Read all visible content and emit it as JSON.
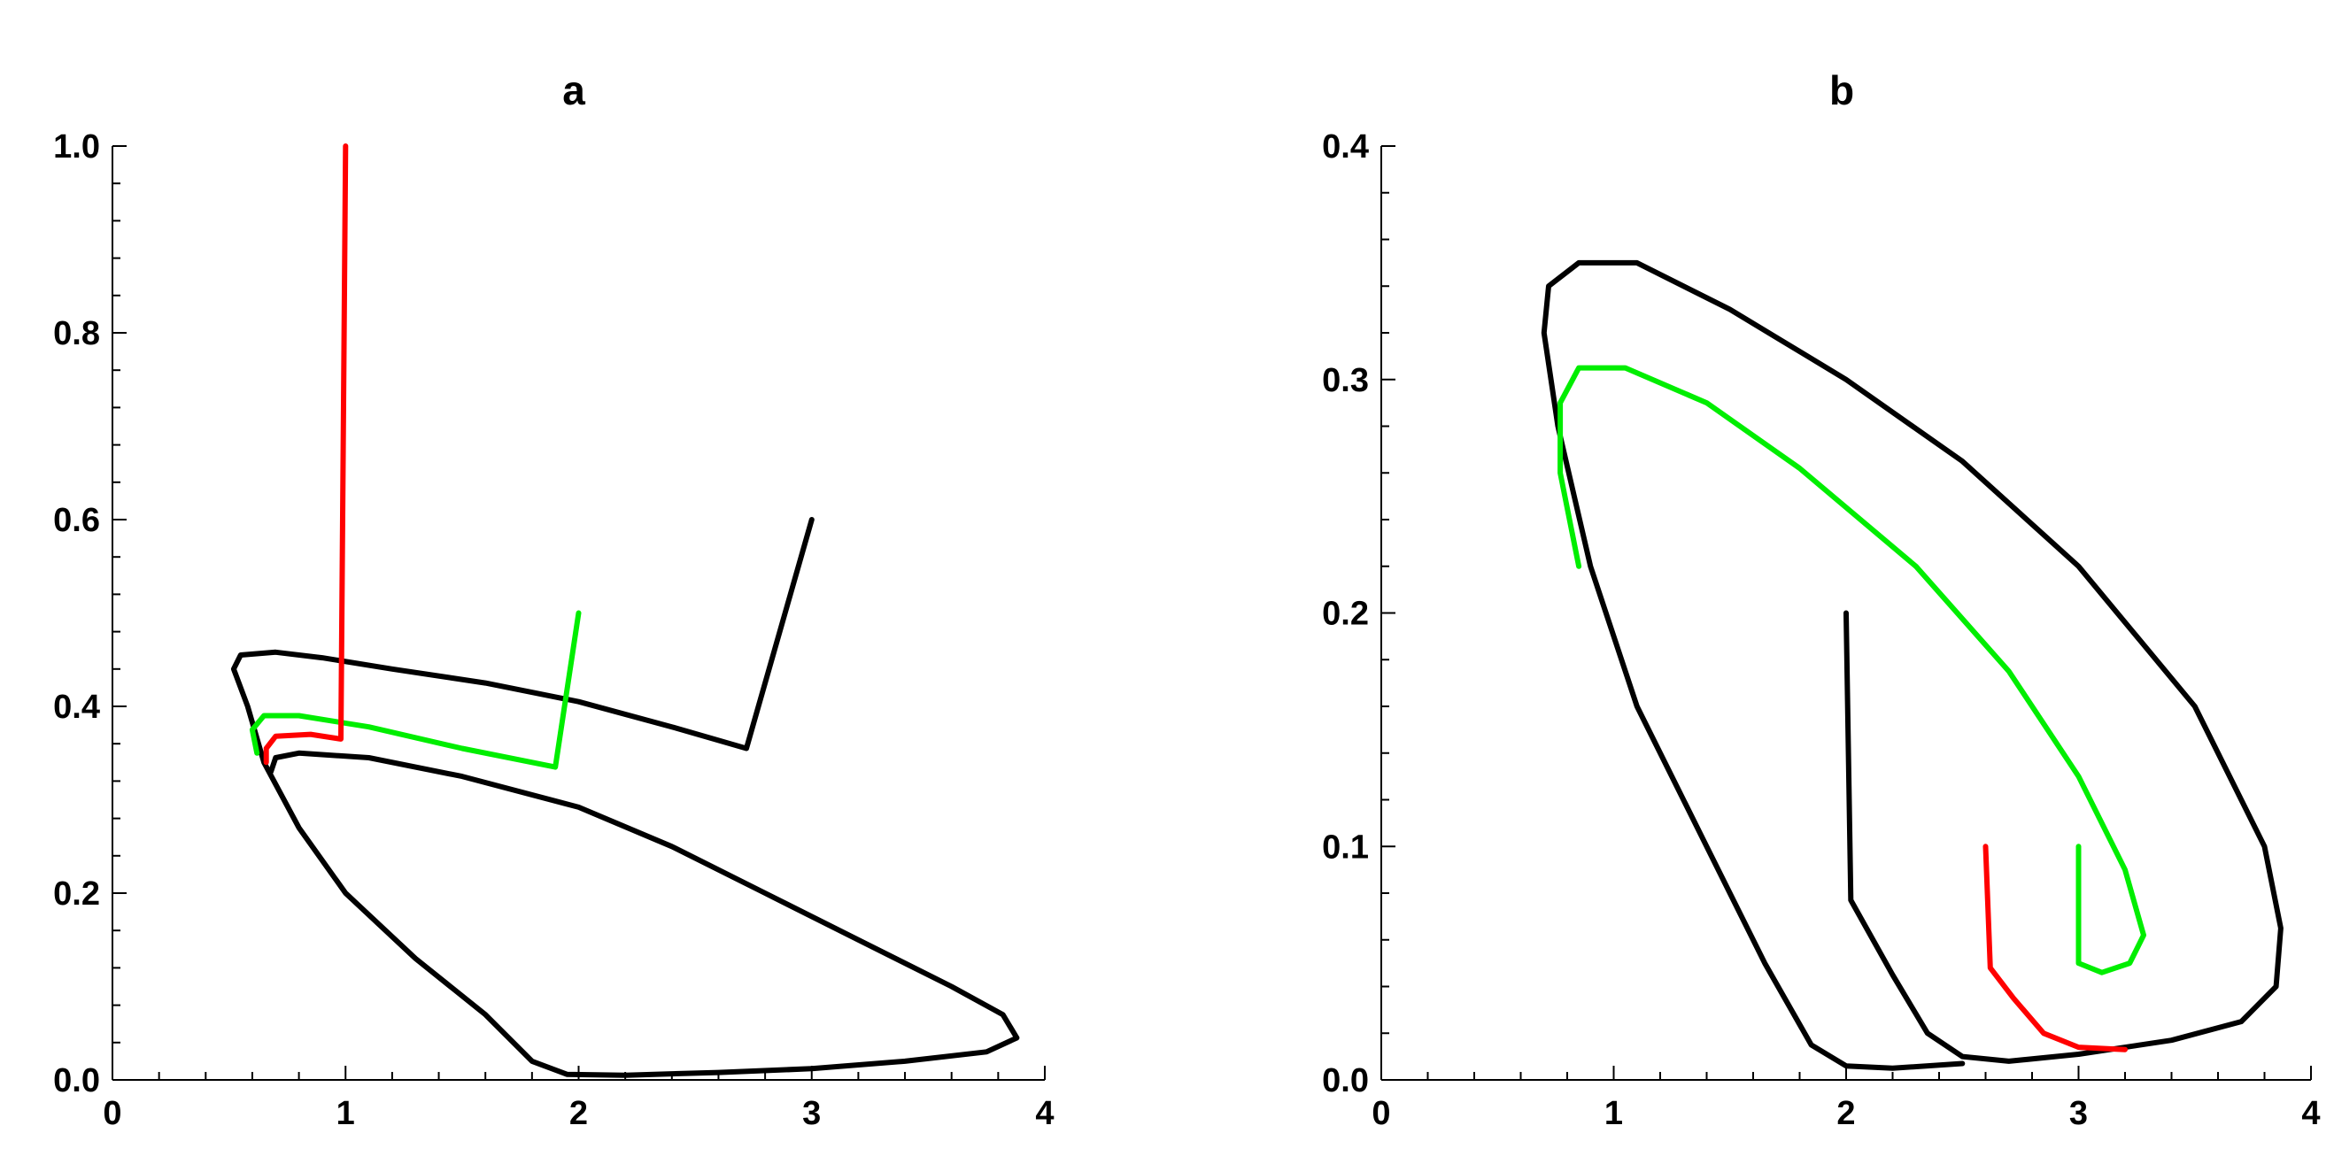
{
  "chart_data": [
    {
      "type": "line",
      "title": "a",
      "xlabel": "",
      "ylabel": "",
      "xlim": [
        0,
        4
      ],
      "ylim": [
        0,
        1.0
      ],
      "x_major_ticks": [
        "0",
        "1",
        "2",
        "3",
        "4"
      ],
      "y_major_ticks": [
        "0.0",
        "0.2",
        "0.4",
        "0.6",
        "0.8",
        "1.0"
      ],
      "grid": false,
      "legend": "none",
      "series": [
        {
          "color": "#000000",
          "points": [
            [
              3.0,
              0.6
            ],
            [
              2.72,
              0.355
            ],
            [
              2.4,
              0.378
            ],
            [
              2.0,
              0.405
            ],
            [
              1.6,
              0.425
            ],
            [
              1.2,
              0.44
            ],
            [
              0.9,
              0.452
            ],
            [
              0.7,
              0.458
            ],
            [
              0.55,
              0.455
            ],
            [
              0.52,
              0.44
            ],
            [
              0.58,
              0.4
            ],
            [
              0.65,
              0.34
            ],
            [
              0.8,
              0.27
            ],
            [
              1.0,
              0.2
            ],
            [
              1.3,
              0.13
            ],
            [
              1.6,
              0.07
            ],
            [
              1.8,
              0.02
            ],
            [
              1.95,
              0.006
            ],
            [
              2.2,
              0.005
            ],
            [
              2.6,
              0.008
            ],
            [
              3.0,
              0.012
            ],
            [
              3.4,
              0.02
            ],
            [
              3.75,
              0.03
            ],
            [
              3.88,
              0.045
            ],
            [
              3.82,
              0.07
            ],
            [
              3.6,
              0.1
            ],
            [
              3.2,
              0.15
            ],
            [
              2.8,
              0.2
            ],
            [
              2.4,
              0.25
            ],
            [
              2.0,
              0.292
            ],
            [
              1.5,
              0.325
            ],
            [
              1.1,
              0.345
            ],
            [
              0.8,
              0.35
            ],
            [
              0.7,
              0.345
            ],
            [
              0.68,
              0.33
            ]
          ]
        },
        {
          "color": "#00ee00",
          "points": [
            [
              2.0,
              0.5
            ],
            [
              1.9,
              0.335
            ],
            [
              1.5,
              0.355
            ],
            [
              1.1,
              0.378
            ],
            [
              0.8,
              0.39
            ],
            [
              0.65,
              0.39
            ],
            [
              0.6,
              0.375
            ],
            [
              0.62,
              0.35
            ]
          ]
        },
        {
          "color": "#ff0000",
          "points": [
            [
              1.0,
              1.0
            ],
            [
              0.98,
              0.365
            ],
            [
              0.85,
              0.37
            ],
            [
              0.7,
              0.368
            ],
            [
              0.66,
              0.355
            ],
            [
              0.66,
              0.34
            ]
          ]
        }
      ]
    },
    {
      "type": "line",
      "title": "b",
      "xlabel": "",
      "ylabel": "",
      "xlim": [
        0,
        4
      ],
      "ylim": [
        0,
        0.4
      ],
      "x_major_ticks": [
        "0",
        "1",
        "2",
        "3",
        "4"
      ],
      "y_major_ticks": [
        "0.0",
        "0.1",
        "0.2",
        "0.3",
        "0.4"
      ],
      "grid": false,
      "legend": "none",
      "series": [
        {
          "color": "#000000",
          "points": [
            [
              2.0,
              0.2
            ],
            [
              2.02,
              0.077
            ],
            [
              2.2,
              0.045
            ],
            [
              2.35,
              0.02
            ],
            [
              2.5,
              0.01
            ],
            [
              2.7,
              0.008
            ],
            [
              3.0,
              0.011
            ],
            [
              3.4,
              0.017
            ],
            [
              3.7,
              0.025
            ],
            [
              3.85,
              0.04
            ],
            [
              3.87,
              0.065
            ],
            [
              3.8,
              0.1
            ],
            [
              3.5,
              0.16
            ],
            [
              3.0,
              0.22
            ],
            [
              2.5,
              0.265
            ],
            [
              2.0,
              0.3
            ],
            [
              1.5,
              0.33
            ],
            [
              1.1,
              0.35
            ],
            [
              0.85,
              0.35
            ],
            [
              0.72,
              0.34
            ],
            [
              0.7,
              0.32
            ],
            [
              0.76,
              0.28
            ],
            [
              0.9,
              0.22
            ],
            [
              1.1,
              0.16
            ],
            [
              1.4,
              0.1
            ],
            [
              1.65,
              0.05
            ],
            [
              1.85,
              0.015
            ],
            [
              2.0,
              0.006
            ],
            [
              2.2,
              0.005
            ],
            [
              2.5,
              0.007
            ]
          ]
        },
        {
          "color": "#00ee00",
          "points": [
            [
              3.0,
              0.1
            ],
            [
              3.0,
              0.05
            ],
            [
              3.1,
              0.046
            ],
            [
              3.22,
              0.05
            ],
            [
              3.28,
              0.062
            ],
            [
              3.2,
              0.09
            ],
            [
              3.0,
              0.13
            ],
            [
              2.7,
              0.175
            ],
            [
              2.3,
              0.22
            ],
            [
              1.8,
              0.262
            ],
            [
              1.4,
              0.29
            ],
            [
              1.05,
              0.305
            ],
            [
              0.85,
              0.305
            ],
            [
              0.77,
              0.29
            ],
            [
              0.77,
              0.26
            ],
            [
              0.85,
              0.22
            ]
          ]
        },
        {
          "color": "#ff0000",
          "points": [
            [
              2.6,
              0.1
            ],
            [
              2.62,
              0.048
            ],
            [
              2.72,
              0.035
            ],
            [
              2.85,
              0.02
            ],
            [
              3.0,
              0.014
            ],
            [
              3.2,
              0.013
            ]
          ]
        }
      ]
    }
  ]
}
